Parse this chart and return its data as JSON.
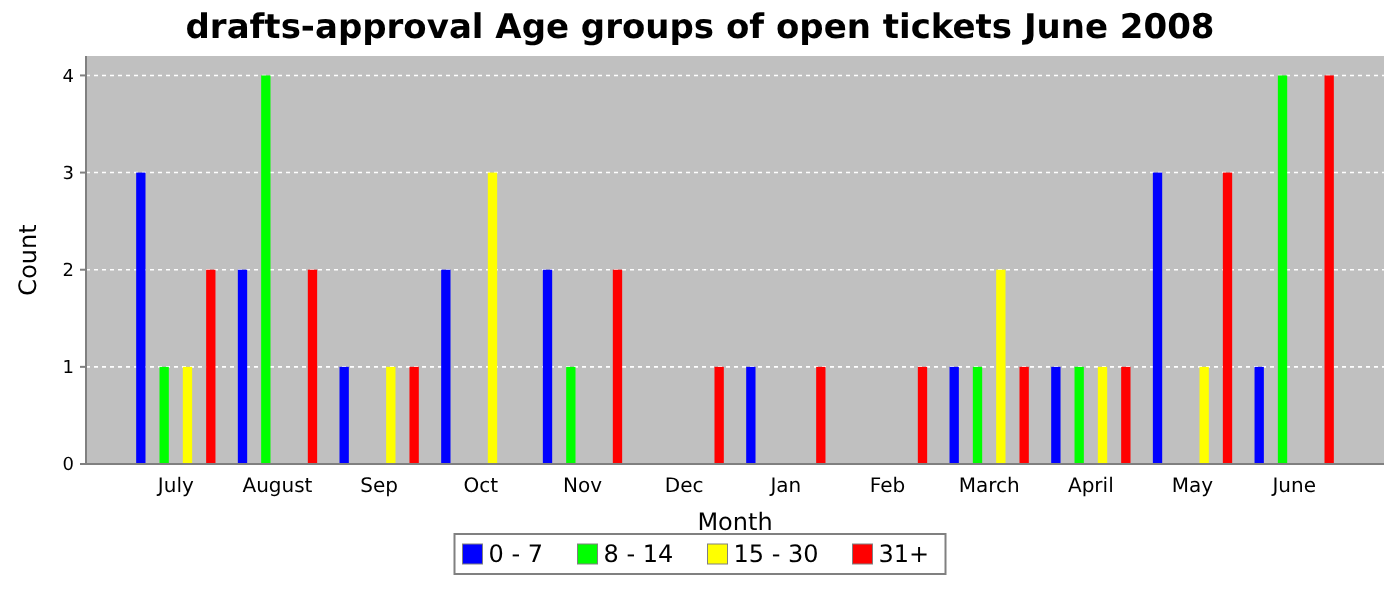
{
  "chart_data": {
    "type": "bar",
    "title": "drafts-approval Age groups of open tickets June 2008",
    "xlabel": "Month",
    "ylabel": "Count",
    "categories": [
      "July",
      "August",
      "Sep",
      "Oct",
      "Nov",
      "Dec",
      "Jan",
      "Feb",
      "March",
      "April",
      "May",
      "June"
    ],
    "series": [
      {
        "name": "0 - 7",
        "color": "#0000ff",
        "values": [
          3,
          2,
          1,
          2,
          2,
          0,
          1,
          0,
          1,
          1,
          3,
          1
        ]
      },
      {
        "name": "8 - 14",
        "color": "#00ff00",
        "values": [
          1,
          4,
          0,
          0,
          1,
          0,
          0,
          0,
          1,
          1,
          0,
          4
        ]
      },
      {
        "name": "15 - 30",
        "color": "#ffff00",
        "values": [
          1,
          0,
          1,
          3,
          0,
          0,
          0,
          0,
          2,
          1,
          1,
          0
        ]
      },
      {
        "name": "31+",
        "color": "#ff0000",
        "values": [
          2,
          2,
          1,
          0,
          2,
          1,
          1,
          1,
          1,
          1,
          3,
          4
        ]
      }
    ],
    "ylim": [
      0,
      4.2
    ],
    "yticks": [
      0,
      1,
      2,
      3,
      4
    ],
    "grid": "y",
    "legend": "bottom"
  }
}
